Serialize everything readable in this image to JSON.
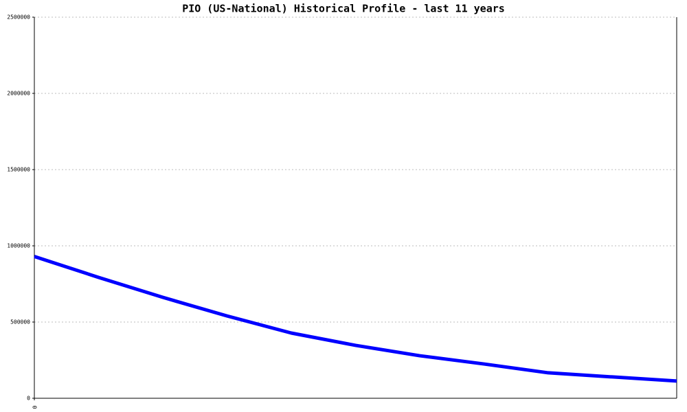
{
  "chart_data": {
    "type": "line",
    "title": "PIO (US-National) Historical Profile - last 11 years",
    "x": [
      0,
      1,
      2,
      3,
      4,
      5,
      6,
      7,
      8,
      9,
      10
    ],
    "series": [
      {
        "color": "#0000ff",
        "values": [
          930000,
          793000,
          662000,
          540000,
          428000,
          347000,
          279000,
          225000,
          167000,
          140000,
          113000
        ]
      }
    ],
    "xlim": [
      0,
      10
    ],
    "xticks": [
      0
    ],
    "ylim": [
      0,
      2500000
    ],
    "yticks": [
      0,
      500000,
      1000000,
      1500000,
      2000000,
      2500000
    ],
    "grid": true
  }
}
